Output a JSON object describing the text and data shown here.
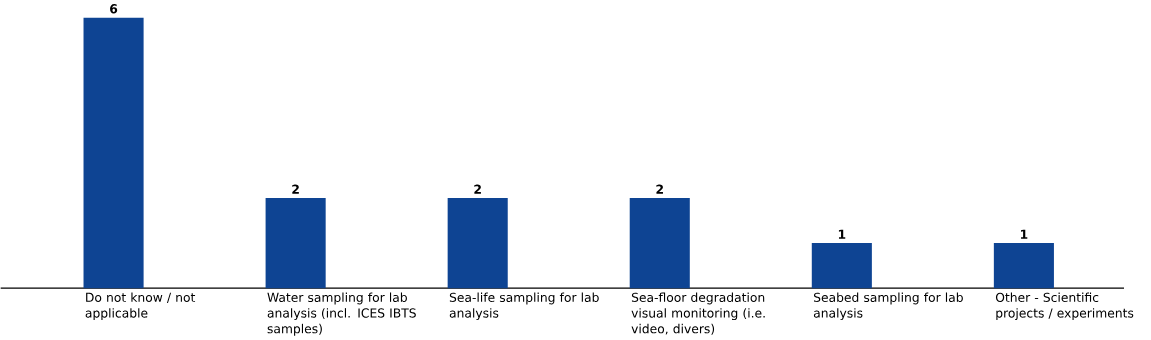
{
  "chart_data": {
    "type": "bar",
    "categories": [
      "Do not know / not applicable",
      "Water sampling for lab analysis (incl. ICES IBTS samples)",
      "Sea-life sampling for lab analysis",
      "Sea-floor degradation visual monitoring (i.e. video, divers)",
      "Seabed sampling for lab analysis",
      "Other - Scientific projects / experiments"
    ],
    "values": [
      6,
      2,
      2,
      2,
      1,
      1
    ],
    "color": "#0e4493",
    "tick_labels": "x",
    "data_labels": true
  }
}
